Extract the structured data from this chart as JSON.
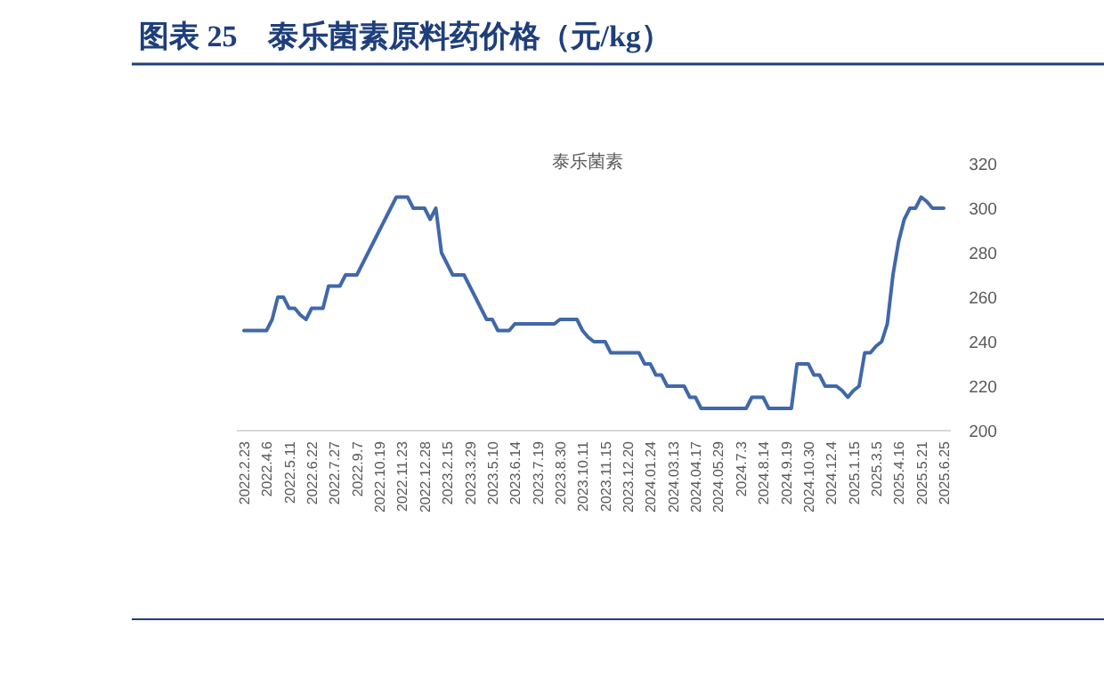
{
  "chart_data": {
    "type": "line",
    "title": "图表 25　泰乐菌素原料药价格（元/kg）",
    "subtitle": "泰乐菌素",
    "categories": [
      "2022.2.23",
      null,
      null,
      null,
      "2022.4.6",
      null,
      null,
      null,
      "2022.5.11",
      null,
      null,
      null,
      "2022.6.22",
      null,
      null,
      null,
      "2022.7.27",
      null,
      null,
      null,
      "2022.9.7",
      null,
      null,
      null,
      "2022.10.19",
      null,
      null,
      null,
      "2022.11.23",
      null,
      null,
      null,
      "2022.12.28",
      null,
      null,
      null,
      "2023.2.15",
      null,
      null,
      null,
      "2023.3.29",
      null,
      null,
      null,
      "2023.5.10",
      null,
      null,
      null,
      "2023.6.14",
      null,
      null,
      null,
      "2023.7.19",
      null,
      null,
      null,
      "2023.8.30",
      null,
      null,
      null,
      "2023.10.11",
      null,
      null,
      null,
      "2023.11.15",
      null,
      null,
      null,
      "2023.12.20",
      null,
      null,
      null,
      "2024.01.24",
      null,
      null,
      null,
      "2024.03.13",
      null,
      null,
      null,
      "2024.04.17",
      null,
      null,
      null,
      "2024.05.29",
      null,
      null,
      null,
      "2024.7.3",
      null,
      null,
      null,
      "2024.8.14",
      null,
      null,
      null,
      "2024.9.19",
      null,
      null,
      null,
      "2024.10.30",
      null,
      null,
      null,
      "2024.12.4",
      null,
      null,
      null,
      "2025.1.15",
      null,
      null,
      null,
      "2025.3.5",
      null,
      null,
      null,
      "2025.4.16",
      null,
      null,
      null,
      "2025.5.21",
      null,
      null,
      null,
      "2025.6.25"
    ],
    "series": [
      {
        "color": "#4168a8",
        "values": [
          245,
          245,
          245,
          245,
          245,
          250,
          260,
          260,
          255,
          255,
          252,
          250,
          255,
          255,
          255,
          265,
          265,
          265,
          270,
          270,
          270,
          275,
          280,
          285,
          290,
          295,
          300,
          305,
          305,
          305,
          300,
          300,
          300,
          295,
          300,
          280,
          275,
          270,
          270,
          270,
          265,
          260,
          255,
          250,
          250,
          245,
          245,
          245,
          248,
          248,
          248,
          248,
          248,
          248,
          248,
          248,
          250,
          250,
          250,
          250,
          245,
          242,
          240,
          240,
          240,
          235,
          235,
          235,
          235,
          235,
          235,
          230,
          230,
          225,
          225,
          220,
          220,
          220,
          220,
          215,
          215,
          210,
          210,
          210,
          210,
          210,
          210,
          210,
          210,
          210,
          215,
          215,
          215,
          210,
          210,
          210,
          210,
          210,
          230,
          230,
          230,
          225,
          225,
          220,
          220,
          220,
          218,
          215,
          218,
          220,
          235,
          235,
          238,
          240,
          248,
          270,
          285,
          295,
          300,
          300,
          305,
          303,
          300,
          300,
          300
        ]
      }
    ],
    "ylim": [
      200,
      320
    ],
    "yticks": [
      200,
      220,
      240,
      260,
      280,
      300,
      320
    ],
    "grid": false,
    "marker": "none",
    "line_style": "solid"
  }
}
